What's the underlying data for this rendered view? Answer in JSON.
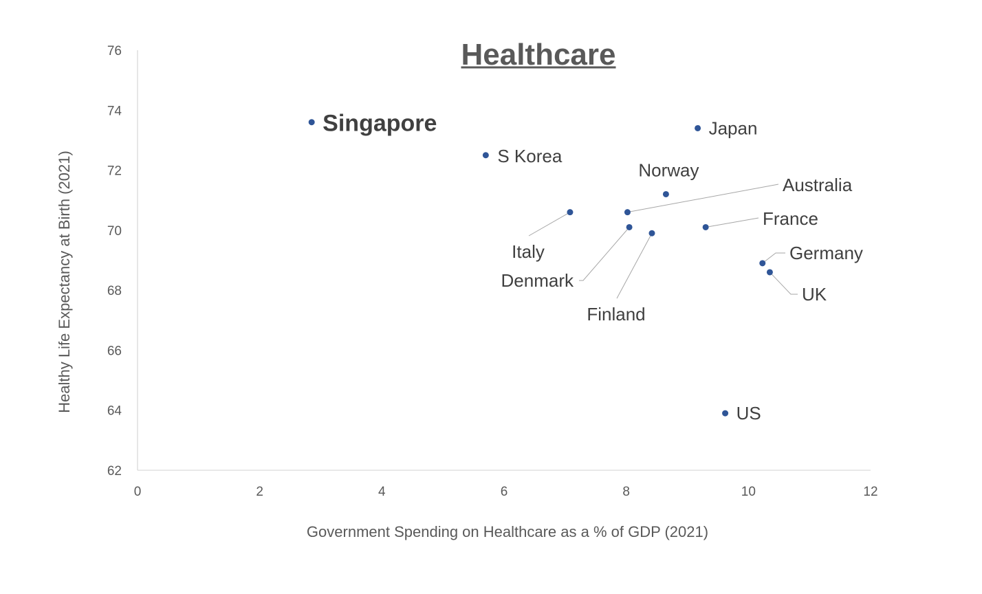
{
  "chart_data": {
    "type": "scatter",
    "title": "Healthcare",
    "xlabel": "Government Spending on Healthcare as a % of GDP (2021)",
    "ylabel": "Healthy Life Expectancy at Birth (2021)",
    "xlim": [
      0,
      12
    ],
    "ylim": [
      62,
      76
    ],
    "xticks": [
      "0",
      "2",
      "4",
      "6",
      "8",
      "10",
      "12"
    ],
    "yticks": [
      "62",
      "64",
      "66",
      "68",
      "70",
      "72",
      "74",
      "76"
    ],
    "grid": false,
    "marker_color": "#2f5597",
    "highlight_color": "#7b2a1f",
    "points": [
      {
        "label": "Singapore",
        "x": 2.85,
        "y": 73.6,
        "highlight": true
      },
      {
        "label": "S Korea",
        "x": 5.7,
        "y": 72.5
      },
      {
        "label": "Japan",
        "x": 9.17,
        "y": 73.4
      },
      {
        "label": "Norway",
        "x": 8.65,
        "y": 71.2
      },
      {
        "label": "Australia",
        "x": 8.02,
        "y": 70.6
      },
      {
        "label": "Italy",
        "x": 7.08,
        "y": 70.6
      },
      {
        "label": "Denmark",
        "x": 8.05,
        "y": 70.1
      },
      {
        "label": "Finland",
        "x": 8.42,
        "y": 69.9
      },
      {
        "label": "France",
        "x": 9.3,
        "y": 70.1
      },
      {
        "label": "Germany",
        "x": 10.23,
        "y": 68.9
      },
      {
        "label": "UK",
        "x": 10.35,
        "y": 68.6
      },
      {
        "label": "US",
        "x": 9.62,
        "y": 63.9
      }
    ]
  }
}
